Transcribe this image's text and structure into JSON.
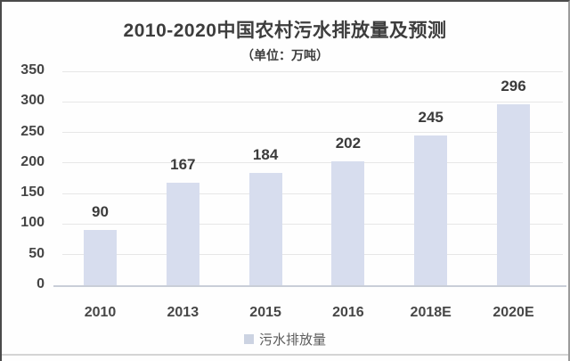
{
  "chart_data": {
    "type": "bar",
    "title": "2010-2020中国农村污水排放量及预测",
    "subtitle": "（单位：万吨）",
    "categories": [
      "2010",
      "2013",
      "2015",
      "2016",
      "2018E",
      "2020E"
    ],
    "values": [
      90,
      167,
      184,
      202,
      245,
      296
    ],
    "series_name": "污水排放量",
    "legend": [
      "污水排放量"
    ],
    "legend_position": "bottom",
    "xlabel": "",
    "ylabel": "",
    "ylim": [
      0,
      350
    ],
    "yticks": [
      0,
      50,
      100,
      150,
      200,
      250,
      300,
      350
    ],
    "grid": true,
    "colors": {
      "bar_fill": "#d7ddee",
      "legend_swatch": "#ccd3e2",
      "title_text": "#3d3d3d",
      "axis_text": "#454545",
      "value_label_text": "#3b3b3b",
      "gridline": "#e7e7e7",
      "baseline": "#c9ced8"
    }
  }
}
